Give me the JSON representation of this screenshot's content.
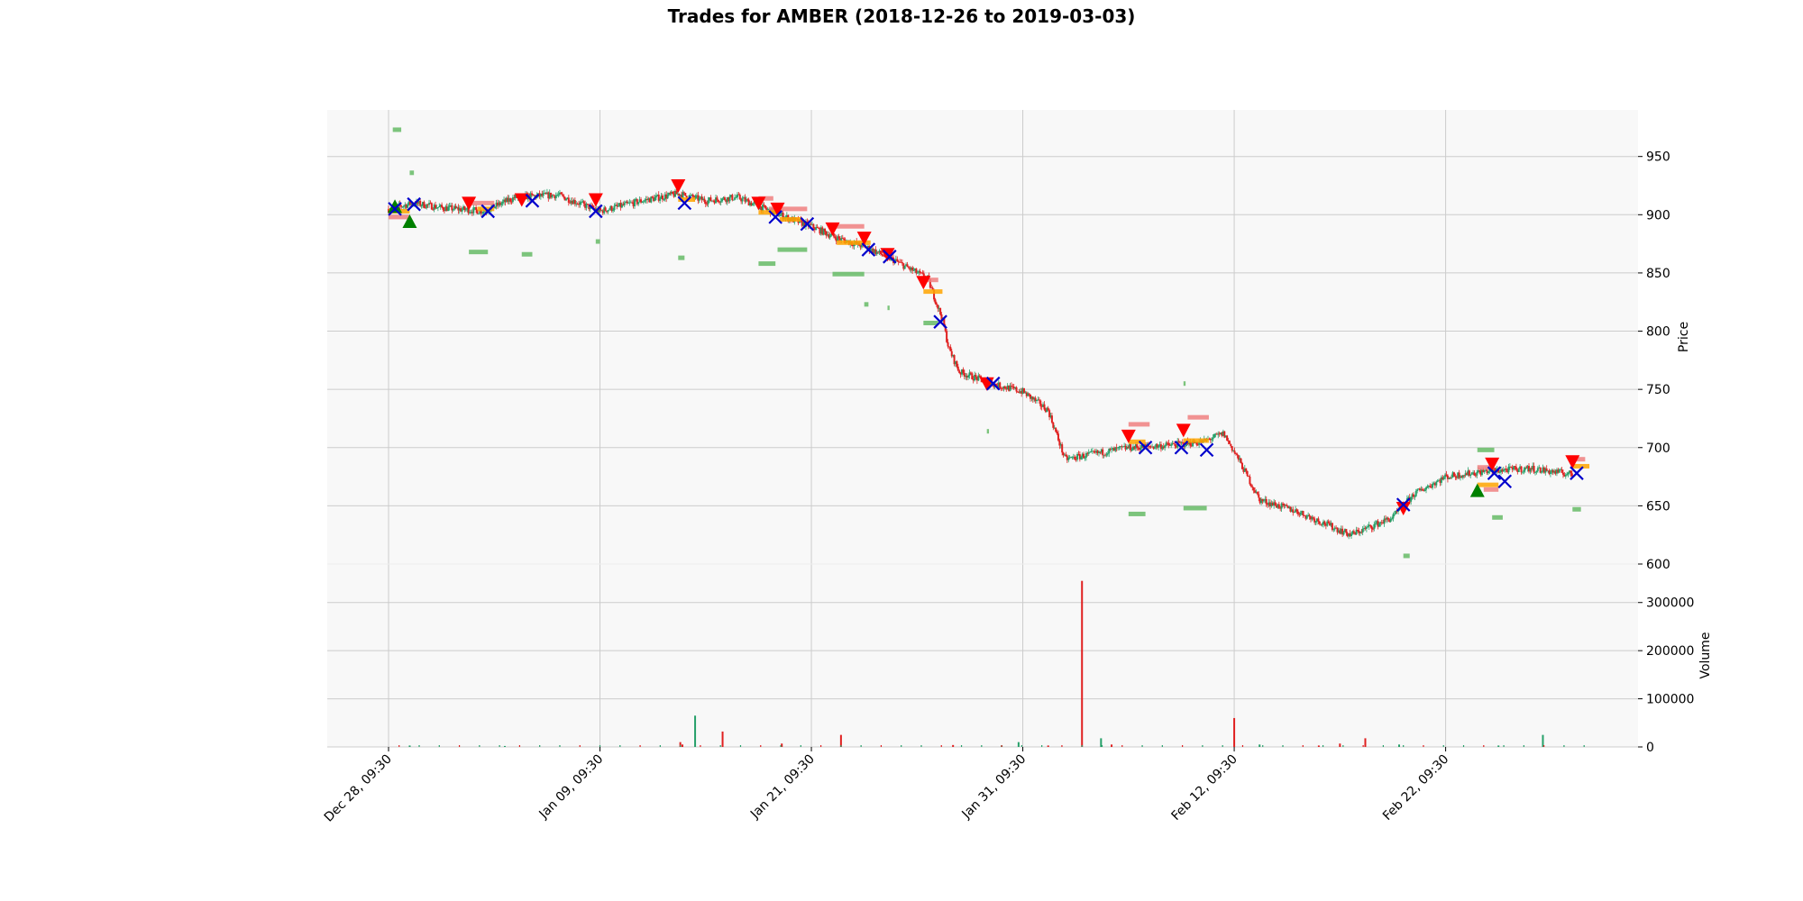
{
  "chart_data": [
    {
      "type": "candlestick",
      "title": "Trades for AMBER (2018-12-26 to 2019-03-03)",
      "ylabel": "Price",
      "ylim": [
        600,
        990
      ],
      "yticks": [
        600,
        650,
        700,
        750,
        800,
        850,
        900,
        950
      ],
      "grid": true,
      "x_tick_labels": [
        "Dec 28, 09:30",
        "Jan 09, 09:30",
        "Jan 21, 09:30",
        "Jan 31, 09:30",
        "Feb 12, 09:30",
        "Feb 22, 09:30"
      ],
      "x_tick_index": [
        0,
        1,
        2,
        3,
        4,
        5
      ],
      "x_range": [
        -0.29,
        5.91
      ],
      "price_path": [
        [
          0.0,
          905
        ],
        [
          0.12,
          910
        ],
        [
          0.25,
          906
        ],
        [
          0.45,
          903
        ],
        [
          0.6,
          915
        ],
        [
          0.8,
          917
        ],
        [
          1.0,
          903
        ],
        [
          1.2,
          912
        ],
        [
          1.37,
          918
        ],
        [
          1.5,
          912
        ],
        [
          1.65,
          915
        ],
        [
          1.78,
          905
        ],
        [
          1.92,
          895
        ],
        [
          2.0,
          890
        ],
        [
          2.12,
          880
        ],
        [
          2.26,
          872
        ],
        [
          2.4,
          860
        ],
        [
          2.55,
          845
        ],
        [
          2.62,
          810
        ],
        [
          2.65,
          785
        ],
        [
          2.7,
          765
        ],
        [
          2.85,
          755
        ],
        [
          3.0,
          748
        ],
        [
          3.12,
          732
        ],
        [
          3.2,
          690
        ],
        [
          3.35,
          695
        ],
        [
          3.5,
          700
        ],
        [
          3.7,
          702
        ],
        [
          3.85,
          705
        ],
        [
          3.95,
          712
        ],
        [
          4.02,
          690
        ],
        [
          4.12,
          655
        ],
        [
          4.3,
          645
        ],
        [
          4.55,
          625
        ],
        [
          4.75,
          640
        ],
        [
          4.85,
          660
        ],
        [
          5.0,
          675
        ],
        [
          5.2,
          680
        ],
        [
          5.4,
          682
        ],
        [
          5.6,
          677
        ]
      ],
      "buy_markers": [
        {
          "x": 0.03,
          "y": 907
        },
        {
          "x": 0.1,
          "y": 894
        },
        {
          "x": 5.15,
          "y": 663
        }
      ],
      "sell_markers": [
        {
          "x": 0.38,
          "y": 910
        },
        {
          "x": 0.63,
          "y": 913
        },
        {
          "x": 0.98,
          "y": 913
        },
        {
          "x": 1.37,
          "y": 925
        },
        {
          "x": 1.75,
          "y": 910
        },
        {
          "x": 1.84,
          "y": 905
        },
        {
          "x": 2.1,
          "y": 888
        },
        {
          "x": 2.25,
          "y": 880
        },
        {
          "x": 2.36,
          "y": 866
        },
        {
          "x": 2.53,
          "y": 842
        },
        {
          "x": 2.83,
          "y": 755
        },
        {
          "x": 3.5,
          "y": 710
        },
        {
          "x": 3.76,
          "y": 715
        },
        {
          "x": 4.8,
          "y": 648
        },
        {
          "x": 5.22,
          "y": 686
        },
        {
          "x": 5.6,
          "y": 688
        }
      ],
      "exit_markers": [
        {
          "x": 0.03,
          "y": 905
        },
        {
          "x": 0.12,
          "y": 909
        },
        {
          "x": 0.47,
          "y": 903
        },
        {
          "x": 0.68,
          "y": 912
        },
        {
          "x": 0.98,
          "y": 903
        },
        {
          "x": 1.4,
          "y": 910
        },
        {
          "x": 1.83,
          "y": 898
        },
        {
          "x": 1.98,
          "y": 892
        },
        {
          "x": 2.27,
          "y": 870
        },
        {
          "x": 2.37,
          "y": 864
        },
        {
          "x": 2.61,
          "y": 808
        },
        {
          "x": 2.86,
          "y": 755
        },
        {
          "x": 3.58,
          "y": 700
        },
        {
          "x": 3.75,
          "y": 700
        },
        {
          "x": 3.87,
          "y": 698
        },
        {
          "x": 4.8,
          "y": 651
        },
        {
          "x": 5.23,
          "y": 678
        },
        {
          "x": 5.28,
          "y": 671
        },
        {
          "x": 5.62,
          "y": 678
        }
      ],
      "stop_levels_red": [
        {
          "x1": 0.0,
          "x2": 0.1,
          "y": 898
        },
        {
          "x1": 0.38,
          "x2": 0.5,
          "y": 910
        },
        {
          "x1": 1.75,
          "x2": 1.82,
          "y": 914
        },
        {
          "x1": 1.8,
          "x2": 1.98,
          "y": 905
        },
        {
          "x1": 2.1,
          "x2": 2.25,
          "y": 890
        },
        {
          "x1": 2.53,
          "x2": 2.6,
          "y": 844
        },
        {
          "x1": 3.5,
          "x2": 3.6,
          "y": 720
        },
        {
          "x1": 3.78,
          "x2": 3.88,
          "y": 726
        },
        {
          "x1": 5.15,
          "x2": 5.23,
          "y": 683
        },
        {
          "x1": 5.18,
          "x2": 5.25,
          "y": 664
        },
        {
          "x1": 5.6,
          "x2": 5.66,
          "y": 690
        }
      ],
      "target_levels_orange": [
        {
          "x1": 0.0,
          "x2": 0.1,
          "y": 903
        },
        {
          "x1": 0.42,
          "x2": 0.5,
          "y": 905
        },
        {
          "x1": 1.37,
          "x2": 1.45,
          "y": 913
        },
        {
          "x1": 1.75,
          "x2": 1.85,
          "y": 902
        },
        {
          "x1": 1.85,
          "x2": 1.95,
          "y": 896
        },
        {
          "x1": 2.12,
          "x2": 2.28,
          "y": 876
        },
        {
          "x1": 2.53,
          "x2": 2.62,
          "y": 834
        },
        {
          "x1": 3.5,
          "x2": 3.58,
          "y": 705
        },
        {
          "x1": 3.76,
          "x2": 3.88,
          "y": 706
        },
        {
          "x1": 5.15,
          "x2": 5.25,
          "y": 668
        },
        {
          "x1": 5.6,
          "x2": 5.68,
          "y": 684
        }
      ],
      "profit_levels_green": [
        {
          "x1": 0.02,
          "x2": 0.06,
          "y": 973
        },
        {
          "x1": 0.1,
          "x2": 0.12,
          "y": 936
        },
        {
          "x1": 0.38,
          "x2": 0.47,
          "y": 868
        },
        {
          "x1": 0.63,
          "x2": 0.68,
          "y": 866
        },
        {
          "x1": 0.98,
          "x2": 1.0,
          "y": 877
        },
        {
          "x1": 1.37,
          "x2": 1.4,
          "y": 863
        },
        {
          "x1": 1.75,
          "x2": 1.83,
          "y": 858
        },
        {
          "x1": 1.84,
          "x2": 1.98,
          "y": 870
        },
        {
          "x1": 2.1,
          "x2": 2.25,
          "y": 849
        },
        {
          "x1": 2.25,
          "x2": 2.27,
          "y": 823
        },
        {
          "x1": 2.36,
          "x2": 2.37,
          "y": 820
        },
        {
          "x1": 2.53,
          "x2": 2.6,
          "y": 807
        },
        {
          "x1": 2.83,
          "x2": 2.84,
          "y": 714
        },
        {
          "x1": 3.5,
          "x2": 3.58,
          "y": 643
        },
        {
          "x1": 3.76,
          "x2": 3.87,
          "y": 648
        },
        {
          "x1": 3.76,
          "x2": 3.77,
          "y": 755
        },
        {
          "x1": 4.8,
          "x2": 4.83,
          "y": 607
        },
        {
          "x1": 5.15,
          "x2": 5.23,
          "y": 698
        },
        {
          "x1": 5.22,
          "x2": 5.27,
          "y": 640
        },
        {
          "x1": 5.6,
          "x2": 5.64,
          "y": 647
        }
      ]
    },
    {
      "type": "bar",
      "ylabel": "Volume",
      "ylim": [
        0,
        380000
      ],
      "yticks": [
        0,
        100000,
        200000,
        300000
      ],
      "ytick_labels": [
        "0",
        "100000",
        "200000",
        "300000"
      ],
      "bars": [
        {
          "x": 1.38,
          "value": 10000,
          "color": "#e02020"
        },
        {
          "x": 1.39,
          "value": 5000,
          "color": "#e02020"
        },
        {
          "x": 1.45,
          "value": 65000,
          "color": "#26a069"
        },
        {
          "x": 1.58,
          "value": 32000,
          "color": "#e02020"
        },
        {
          "x": 1.86,
          "value": 7000,
          "color": "#e02020"
        },
        {
          "x": 2.14,
          "value": 25000,
          "color": "#e02020"
        },
        {
          "x": 2.98,
          "value": 10000,
          "color": "#26a069"
        },
        {
          "x": 3.28,
          "value": 345000,
          "color": "#e02020"
        },
        {
          "x": 3.37,
          "value": 18000,
          "color": "#26a069"
        },
        {
          "x": 3.42,
          "value": 5000,
          "color": "#e02020"
        },
        {
          "x": 4.0,
          "value": 60000,
          "color": "#e02020"
        },
        {
          "x": 4.12,
          "value": 5000,
          "color": "#26a069"
        },
        {
          "x": 4.5,
          "value": 7000,
          "color": "#e02020"
        },
        {
          "x": 4.62,
          "value": 18000,
          "color": "#e02020"
        },
        {
          "x": 4.78,
          "value": 5000,
          "color": "#26a069"
        },
        {
          "x": 5.46,
          "value": 25000,
          "color": "#26a069"
        },
        {
          "x": 0.1,
          "value": 3000,
          "color": "#26a069"
        },
        {
          "x": 0.55,
          "value": 2000,
          "color": "#26a069"
        },
        {
          "x": 2.67,
          "value": 4000,
          "color": "#e02020"
        },
        {
          "x": 2.9,
          "value": 3000,
          "color": "#26a069"
        },
        {
          "x": 3.12,
          "value": 3000,
          "color": "#e02020"
        },
        {
          "x": 4.4,
          "value": 3000,
          "color": "#e02020"
        },
        {
          "x": 5.25,
          "value": 3000,
          "color": "#26a069"
        }
      ]
    }
  ],
  "colors": {
    "up": "#26a069",
    "down": "#e02020",
    "buy": "#008000",
    "sell": "#ff0000",
    "exit": "#0000cc",
    "stop": "#f08080",
    "target": "#ffa500",
    "profit": "#66bb66",
    "panel": "#f8f8f8",
    "grid": "#cccccc"
  }
}
